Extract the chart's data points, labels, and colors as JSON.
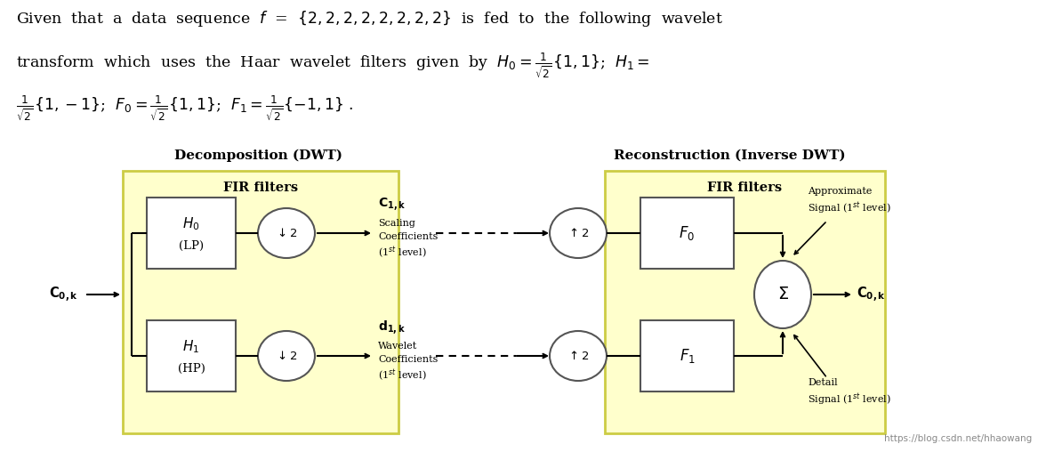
{
  "bg_color": "#ffffff",
  "fir_fill": "#ffffcc",
  "fir_edge": "#cccc44",
  "box_fill": "#ffffff",
  "box_edge": "#555555",
  "arrow_color": "#000000",
  "text_color": "#000000",
  "dwt_title": "Decomposition (DWT)",
  "idwt_title": "Reconstruction (Inverse DWT)",
  "fir_label": "FIR filters",
  "h0_label1": "$H_0$",
  "h0_label2": "(LP)",
  "h1_label1": "$H_1$",
  "h1_label2": "(HP)",
  "f0_label": "$F_0$",
  "f1_label": "$F_1$",
  "ds_label": "$\\downarrow 2$",
  "us_label": "$\\uparrow 2$",
  "sigma_label": "$\\Sigma$",
  "c0k_in": "$\\mathbf{C_{0,k}}$",
  "c0k_out": "$\\mathbf{C_{0,k}}$",
  "c1k_label": "$\\mathbf{C_{1,k}}$",
  "d1k_label": "$\\mathbf{d_{1,k}}$",
  "approx_line1": "Approximate",
  "approx_line2": "Signal (1$^{st}$ level)",
  "detail_line1": "Detail",
  "detail_line2": "Signal (1$^{st}$ level)",
  "scaling_line1": "Scaling",
  "scaling_line2": "Coefficients",
  "scaling_line3": "(1$^{st}$ level)",
  "wavelet_line1": "Wavelet",
  "wavelet_line2": "Coefficients",
  "wavelet_line3": "(1$^{st}$ level)",
  "watermark": "https://blog.csdn.net/hhaowang",
  "figw": 11.76,
  "figh": 5.08,
  "dpi": 100
}
